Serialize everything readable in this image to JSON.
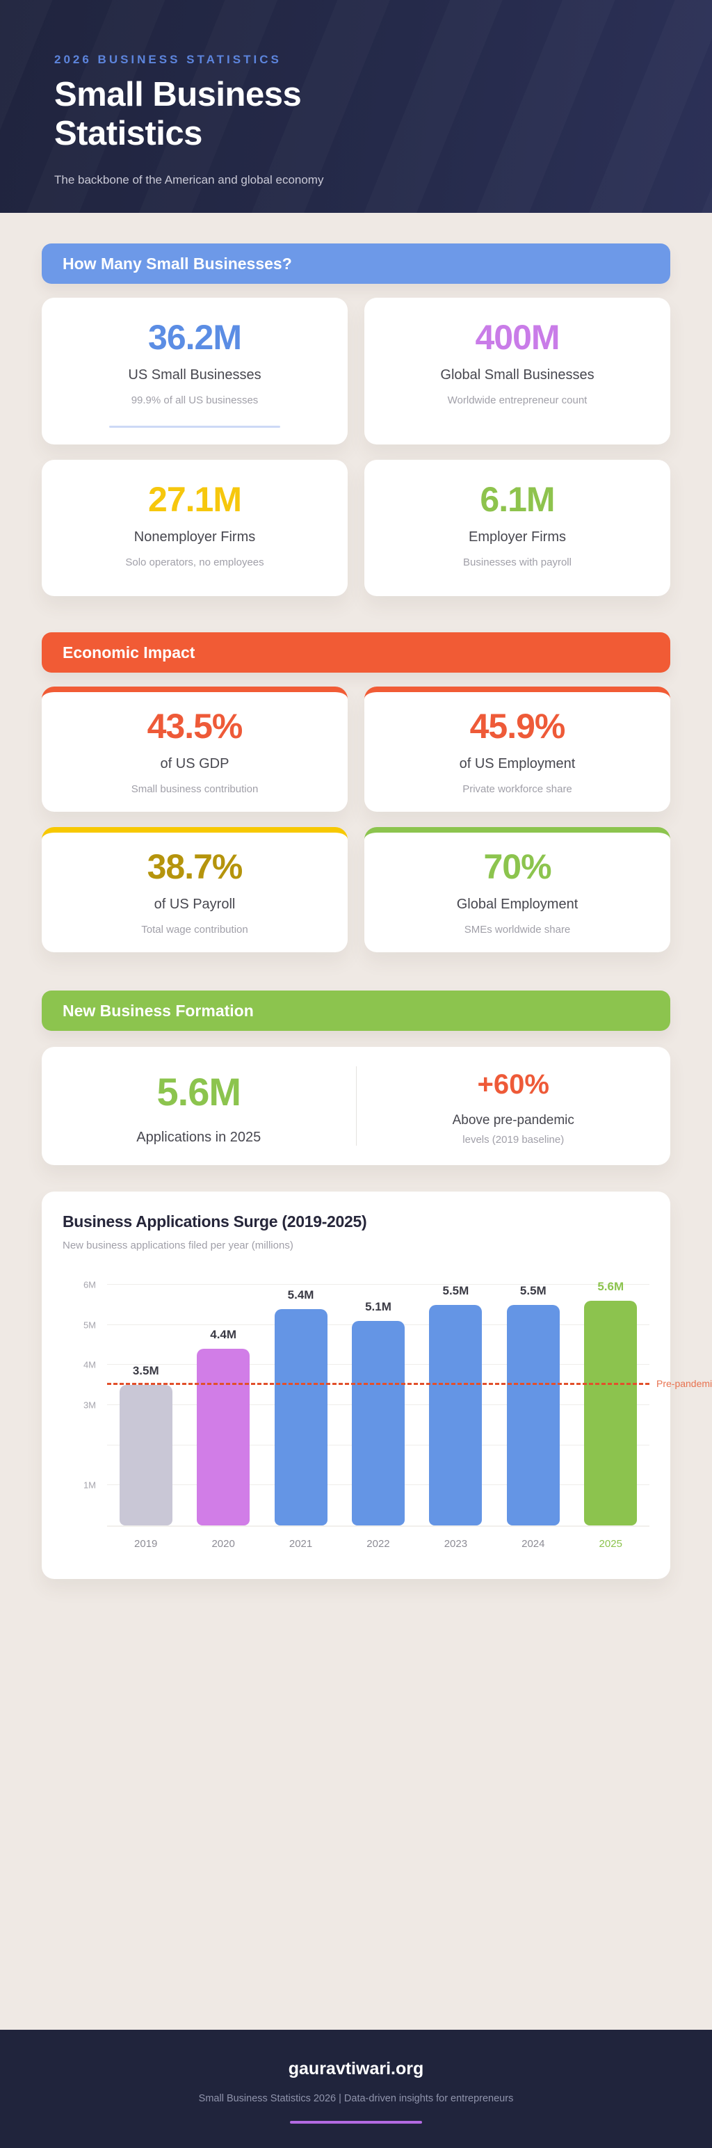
{
  "header": {
    "eyebrow": "2026 BUSINESS STATISTICS",
    "eyebrow_color": "#5d85dd",
    "title": "Small Business Statistics",
    "tagline": "The backbone of the American and global economy",
    "bg": "#232744"
  },
  "sections": [
    {
      "label": "How Many Small Businesses?",
      "color": "#6d99e8",
      "cards": [
        {
          "value": "36.2M",
          "color": "#5b8de4",
          "label": "US Small Businesses",
          "sublabel": "99.9% of all US businesses",
          "underline": "#cdd9f6"
        },
        {
          "value": "400M",
          "color": "#c97ce8",
          "label": "Global Small Businesses",
          "sublabel": "Worldwide entrepreneur count"
        },
        {
          "value": "27.1M",
          "color": "#f6c70d",
          "label": "Nonemployer Firms",
          "sublabel": "Solo operators, no employees"
        },
        {
          "value": "6.1M",
          "color": "#8ec34d",
          "label": "Employer Firms",
          "sublabel": "Businesses with payroll"
        }
      ]
    },
    {
      "label": "Economic Impact",
      "color": "#f15b35",
      "cards": [
        {
          "value": "43.5%",
          "color": "#ee5a38",
          "top": "#f15b35",
          "label": "of US GDP",
          "sublabel": "Small business contribution"
        },
        {
          "value": "45.9%",
          "color": "#ee5a38",
          "top": "#f15b35",
          "label": "of US Employment",
          "sublabel": "Private workforce share"
        },
        {
          "value": "38.7%",
          "color": "#b5940c",
          "top": "#f7c800",
          "label": "of US Payroll",
          "sublabel": "Total wage contribution"
        },
        {
          "value": "70%",
          "color": "#8cc44e",
          "top": "#8cc44e",
          "label": "Global Employment",
          "sublabel": "SMEs worldwide share"
        }
      ]
    },
    {
      "label": "New Business Formation",
      "color": "#8cc44e",
      "formation": {
        "left_value": "5.6M",
        "left_color": "#8cc44e",
        "left_label": "Applications in 2025",
        "right_value": "+60%",
        "right_color": "#ee5a38",
        "right_line1": "Above pre-pandemic",
        "right_line2": "levels (2019 baseline)"
      }
    }
  ],
  "chart_data": {
    "type": "bar",
    "title": "Business Applications Surge (2019-2025)",
    "subtitle": "New business applications filed per year (millions)",
    "categories": [
      "2019",
      "2020",
      "2021",
      "2022",
      "2023",
      "2024",
      "2025"
    ],
    "values": [
      3.5,
      4.4,
      5.4,
      5.1,
      5.5,
      5.5,
      5.6
    ],
    "value_labels": [
      "3.5M",
      "4.4M",
      "5.4M",
      "5.1M",
      "5.5M",
      "5.5M",
      "5.6M"
    ],
    "bar_colors": [
      "#c9c7d6",
      "#d17de7",
      "#6495e5",
      "#6495e5",
      "#6495e5",
      "#6495e5",
      "#8cc34e"
    ],
    "value_label_colors": [
      "#3a3a44",
      "#3a3a44",
      "#3a3a44",
      "#3a3a44",
      "#3a3a44",
      "#3a3a44",
      "#8cc34e"
    ],
    "x_label_colors": [
      "#8d8c95",
      "#8d8c95",
      "#8d8c95",
      "#8d8c95",
      "#8d8c95",
      "#8d8c95",
      "#8cc34e"
    ],
    "xlabel": "",
    "ylabel": "",
    "ylim": [
      0,
      6
    ],
    "y_ticks": [
      {
        "v": 6,
        "label": "6M"
      },
      {
        "v": 5,
        "label": "5M"
      },
      {
        "v": 4,
        "label": "4M"
      },
      {
        "v": 3,
        "label": "3M"
      },
      {
        "v": 2,
        "label": ""
      },
      {
        "v": 1,
        "label": "1M"
      }
    ],
    "grid": true,
    "legend": false,
    "ref_line": {
      "value": 3.5,
      "label": "Pre-pandemic",
      "color": "#e2502b"
    }
  },
  "footer": {
    "site": "gauravtiwari.org",
    "tagline": "Small Business Statistics 2026 | Data-driven insights for entrepreneurs",
    "accent": "#b36ae2"
  }
}
